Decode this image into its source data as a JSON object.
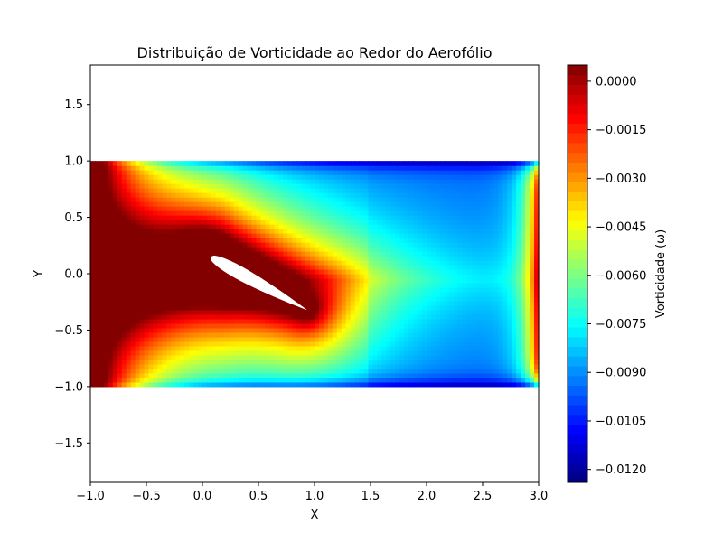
{
  "chart_data": {
    "type": "heatmap",
    "title": "Distribuição de Vorticidade ao Redor do Aerofólio",
    "xlabel": "X",
    "ylabel": "Y",
    "xlim": [
      -1.0,
      3.0
    ],
    "ylim": [
      -1.85,
      1.85
    ],
    "xticks": [
      -1.0,
      -0.5,
      0.0,
      0.5,
      1.0,
      1.5,
      2.0,
      2.5,
      3.0
    ],
    "xtick_labels": [
      "−1.0",
      "−0.5",
      "0.0",
      "0.5",
      "1.0",
      "1.5",
      "2.0",
      "2.5",
      "3.0"
    ],
    "yticks": [
      -1.5,
      -1.0,
      -0.5,
      0.0,
      0.5,
      1.0,
      1.5
    ],
    "ytick_labels": [
      "−1.5",
      "−1.0",
      "−0.5",
      "0.0",
      "0.5",
      "1.0",
      "1.5"
    ],
    "field_domain": {
      "x": [
        -1.0,
        3.0
      ],
      "y": [
        -1.0,
        1.0
      ]
    },
    "colormap": "jet",
    "colorbar": {
      "label": "Vorticidade (ω)",
      "range": [
        -0.0124,
        0.0005
      ],
      "ticks": [
        0.0,
        -0.0015,
        -0.003,
        -0.0045,
        -0.006,
        -0.0075,
        -0.009,
        -0.0105,
        -0.012
      ],
      "tick_labels": [
        "0.0000",
        "−0.0015",
        "−0.0030",
        "−0.0045",
        "−0.0060",
        "−0.0075",
        "−0.0090",
        "−0.0105",
        "−0.0120"
      ]
    },
    "airfoil": {
      "leading_edge": [
        0.07,
        0.15
      ],
      "trailing_edge": [
        0.93,
        -0.32
      ],
      "color": "#ffffff"
    }
  }
}
